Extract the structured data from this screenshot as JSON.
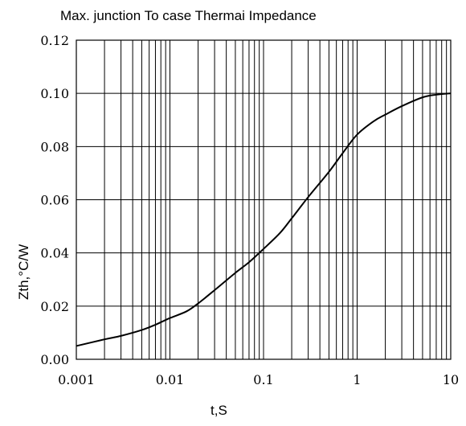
{
  "chart_data": {
    "type": "line",
    "title": "Max. junction To case Thermai Impedance",
    "xlabel": "t,S",
    "ylabel": "Zth,°C/W",
    "x_scale": "log",
    "xlim": [
      0.001,
      10
    ],
    "ylim": [
      0.0,
      0.12
    ],
    "grid": true,
    "x_ticks": [
      0.001,
      0.01,
      0.1,
      1,
      10
    ],
    "x_tick_labels": [
      "0.001",
      "0.01",
      "0.1",
      "1",
      "10"
    ],
    "y_ticks": [
      0.0,
      0.02,
      0.04,
      0.06,
      0.08,
      0.1,
      0.12
    ],
    "y_tick_labels": [
      "0.00",
      "0.02",
      "0.04",
      "0.06",
      "0.08",
      "0.10",
      "0.12"
    ],
    "series": [
      {
        "x": [
          0.001,
          0.002,
          0.003,
          0.005,
          0.007,
          0.01,
          0.015,
          0.02,
          0.03,
          0.05,
          0.07,
          0.1,
          0.15,
          0.2,
          0.3,
          0.5,
          0.7,
          1,
          1.5,
          2,
          3,
          5,
          7,
          10
        ],
        "y": [
          0.005,
          0.0075,
          0.0088,
          0.011,
          0.013,
          0.0155,
          0.018,
          0.021,
          0.026,
          0.0325,
          0.0365,
          0.0415,
          0.0475,
          0.053,
          0.061,
          0.0705,
          0.0775,
          0.0845,
          0.0895,
          0.092,
          0.0952,
          0.0985,
          0.0995,
          0.1
        ]
      }
    ]
  }
}
